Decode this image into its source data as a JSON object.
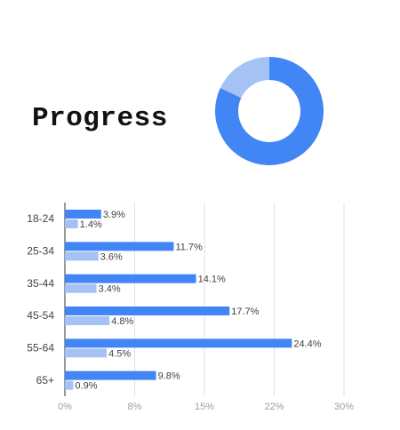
{
  "header": {
    "title": "Progress"
  },
  "chart_data": [
    {
      "type": "pie",
      "variant": "donut",
      "values": [
        82,
        18
      ],
      "colors": [
        "#4285f4",
        "#a4c2f4"
      ]
    },
    {
      "type": "bar",
      "orientation": "horizontal",
      "categories": [
        "18-24",
        "25-34",
        "35-44",
        "45-54",
        "55-64",
        "65+"
      ],
      "series": [
        {
          "values": [
            3.9,
            11.7,
            14.1,
            17.7,
            24.4,
            9.8
          ],
          "labels": [
            "3.9%",
            "11.7%",
            "14.1%",
            "17.7%",
            "24.4%",
            "9.8%"
          ],
          "color": "#4285f4"
        },
        {
          "values": [
            1.4,
            3.6,
            3.4,
            4.8,
            4.5,
            0.9
          ],
          "labels": [
            "1.4%",
            "3.6%",
            "3.4%",
            "4.8%",
            "4.5%",
            "0.9%"
          ],
          "color": "#a4c2f4"
        }
      ],
      "xticks": [
        0,
        7.5,
        15,
        22.5,
        30
      ],
      "xtick_labels": [
        "0%",
        "8%",
        "15%",
        "22%",
        "30%"
      ],
      "xlim": [
        0,
        30
      ],
      "grid": true,
      "legend": "none"
    }
  ]
}
